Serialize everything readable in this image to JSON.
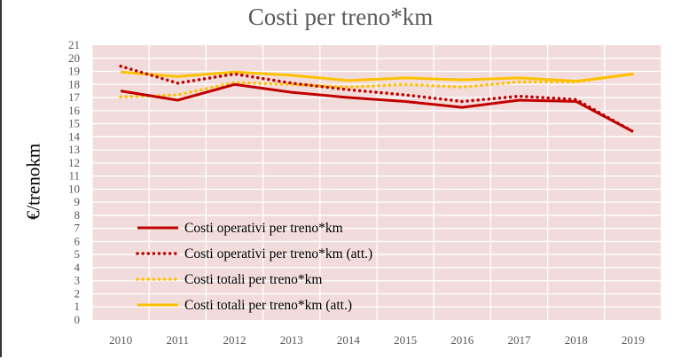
{
  "chart_data": {
    "type": "line",
    "title": "Costi per treno*km",
    "xlabel": "",
    "ylabel": "€/trenokm",
    "ylim": [
      0,
      21
    ],
    "y_ticks": [
      "0",
      "1",
      "2",
      "3",
      "4",
      "5",
      "6",
      "7",
      "8",
      "9",
      "10",
      "11",
      "12",
      "13",
      "14",
      "15",
      "16",
      "17",
      "18",
      "19",
      "20",
      "21"
    ],
    "categories": [
      "2010",
      "2011",
      "2012",
      "2013",
      "2014",
      "2015",
      "2016",
      "2017",
      "2018",
      "2019"
    ],
    "grid": true,
    "legend_placement": "lower-left inside plot",
    "plot_background": "#f2dcdb",
    "series": [
      {
        "name": "Costi operativi per treno*km",
        "color": "#c00000",
        "style": "solid",
        "values": [
          17.5,
          16.8,
          18.0,
          17.4,
          17.0,
          16.7,
          16.25,
          16.8,
          16.7,
          14.4
        ]
      },
      {
        "name": "Costi operativi per treno*km (att.)",
        "color": "#c00000",
        "style": "dotted",
        "values": [
          19.4,
          18.1,
          18.8,
          18.1,
          17.6,
          17.2,
          16.7,
          17.1,
          16.85,
          14.4
        ]
      },
      {
        "name": "Costi totali per treno*km",
        "color": "#ffc000",
        "style": "dotted",
        "values": [
          17.05,
          17.2,
          18.15,
          18.0,
          17.8,
          18.0,
          17.8,
          18.2,
          18.2,
          18.8
        ]
      },
      {
        "name": "Costi totali per treno*km (att.)",
        "color": "#ffc000",
        "style": "solid",
        "values": [
          18.95,
          18.6,
          18.95,
          18.7,
          18.3,
          18.5,
          18.35,
          18.5,
          18.25,
          18.8
        ]
      }
    ]
  }
}
